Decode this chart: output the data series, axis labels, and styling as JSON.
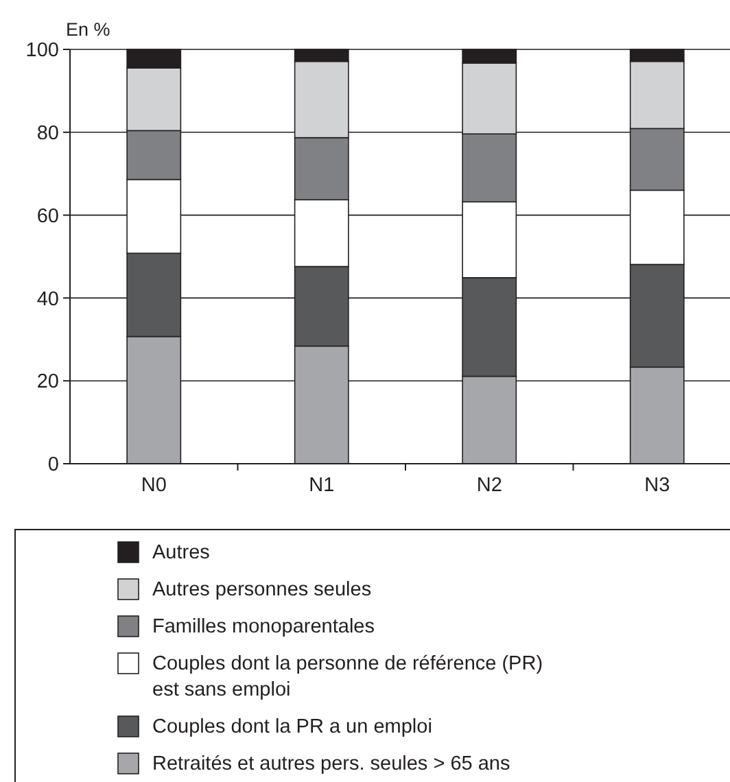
{
  "chart_data": {
    "type": "bar",
    "stacked": true,
    "ylabel": "En %",
    "categories": [
      "N0",
      "N1",
      "N2",
      "N3"
    ],
    "series": [
      {
        "name": "Retraités et autres pers. seules > 65 ans",
        "color": "#a6a7aa",
        "values": [
          30.7,
          28.4,
          21.1,
          23.3
        ]
      },
      {
        "name": "Couples dont la PR a un emploi",
        "color": "#58595b",
        "values": [
          20.1,
          19.2,
          23.8,
          24.8
        ]
      },
      {
        "name": "Couples dont la personne de référence (PR) est sans emploi",
        "color": "#ffffff",
        "values": [
          17.8,
          16.1,
          18.3,
          17.9
        ]
      },
      {
        "name": "Familles monoparentales",
        "color": "#808184",
        "values": [
          11.8,
          15.0,
          16.4,
          14.9
        ]
      },
      {
        "name": "Autres personnes seules",
        "color": "#d1d2d3",
        "values": [
          15.1,
          18.4,
          17.1,
          16.2
        ]
      },
      {
        "name": "Autres",
        "color": "#231f20",
        "values": [
          4.5,
          2.9,
          3.3,
          2.9
        ]
      }
    ],
    "ylim": [
      0,
      100
    ],
    "yticks": [
      0,
      20,
      40,
      60,
      80,
      100
    ],
    "grid": "y",
    "legend": "bottom"
  }
}
